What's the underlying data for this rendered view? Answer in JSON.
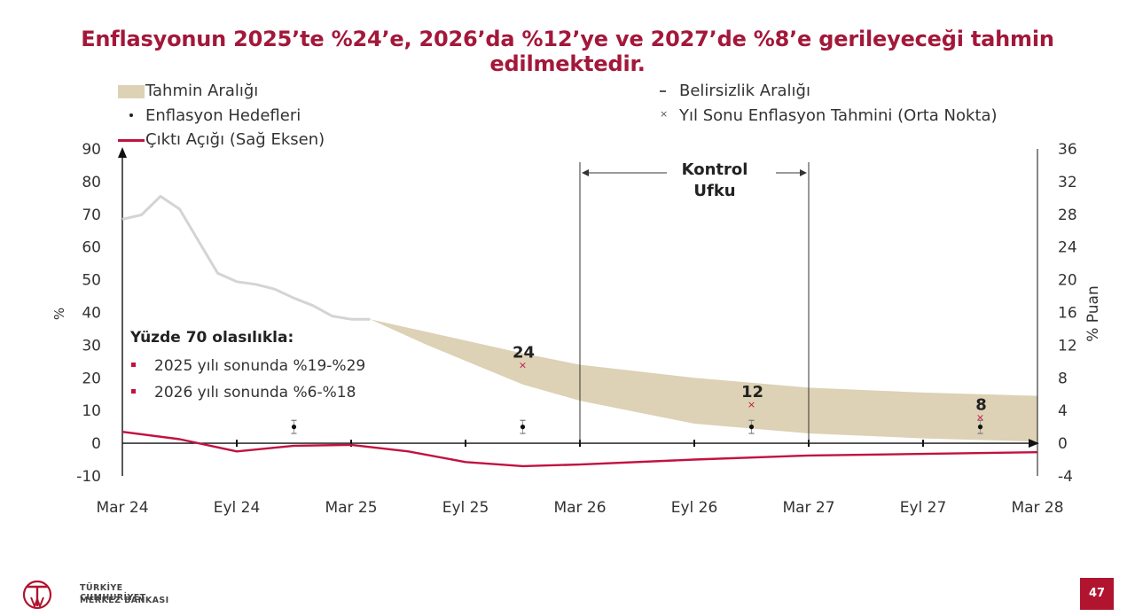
{
  "slide": {
    "title": "Enflasyonun 2025’te %24’e, 2026’da %12’ye ve 2027’de %8’e gerileyeceği tahmin edilmektedir.",
    "page_number": "47",
    "footer_line1": "TÜRKİYE CUMHURİYET",
    "footer_line2": "MERKEZ BANKASI",
    "logo_mark": "TCMB"
  },
  "legend": {
    "band": "Tahmin Aralığı",
    "targets": "Enflasyon Hedefleri",
    "output_gap": "Çıktı Açığı (Sağ Eksen)",
    "uncertainty": "Belirsizlik Aralığı",
    "year_end": "Yıl Sonu Enflasyon Tahmini (Orta Nokta)"
  },
  "colors": {
    "title": "#a3183a",
    "band": "#ddd1b6",
    "inflation_line": "#d4d4d4",
    "output_gap": "#c2123f",
    "year_end_marker": "#c2123f",
    "axis": "#111111",
    "page_badge": "#b0142f"
  },
  "chart_data": {
    "type": "line",
    "x_labels": [
      "Mar 24",
      "Eyl 24",
      "Mar 25",
      "Eyl 25",
      "Mar 26",
      "Eyl 26",
      "Mar 27",
      "Eyl 27",
      "Mar 28"
    ],
    "x_label_months": [
      0,
      6,
      12,
      18,
      24,
      30,
      36,
      42,
      48
    ],
    "x_range": [
      0,
      48
    ],
    "ylabel": "%",
    "y2label": "% Puan",
    "ylim": [
      -10,
      90
    ],
    "yticks": [
      -10,
      0,
      10,
      20,
      30,
      40,
      50,
      60,
      70,
      80,
      90
    ],
    "y2lim": [
      -4,
      36
    ],
    "y2ticks": [
      -4,
      0,
      4,
      8,
      12,
      16,
      20,
      24,
      28,
      32,
      36
    ],
    "inflation": {
      "name": "Enflasyon",
      "months": [
        0,
        1,
        2,
        3,
        4,
        5,
        6,
        7,
        8,
        9,
        10,
        11,
        12,
        13
      ],
      "values": [
        68.5,
        69.8,
        75.5,
        71.6,
        61.8,
        52.0,
        49.4,
        48.6,
        47.1,
        44.4,
        42.1,
        38.9,
        37.9,
        37.9
      ]
    },
    "forecast_band": {
      "name": "Tahmin Aralığı",
      "months": [
        13,
        16,
        21,
        24,
        30,
        36,
        42,
        48
      ],
      "upper": [
        37.9,
        34.0,
        27.5,
        24.0,
        20.0,
        17.0,
        15.5,
        14.5
      ],
      "lower": [
        37.9,
        30.0,
        18.0,
        13.0,
        6.0,
        3.0,
        1.5,
        0.5
      ]
    },
    "year_end_points": [
      {
        "month": 21,
        "value": 24,
        "label": "24"
      },
      {
        "month": 33,
        "value": 12,
        "label": "12"
      },
      {
        "month": 45,
        "value": 8,
        "label": "8"
      }
    ],
    "targets": [
      {
        "month": 9,
        "value": 5,
        "low": 3,
        "high": 7
      },
      {
        "month": 21,
        "value": 5,
        "low": 3,
        "high": 7
      },
      {
        "month": 33,
        "value": 5,
        "low": 3,
        "high": 7
      },
      {
        "month": 45,
        "value": 5,
        "low": 3,
        "high": 7
      }
    ],
    "output_gap": {
      "name": "Çıktı Açığı (Sağ Eksen)",
      "months": [
        0,
        3,
        6,
        9,
        12,
        15,
        18,
        21,
        24,
        30,
        36,
        42,
        48
      ],
      "values": [
        1.4,
        0.5,
        -1.0,
        -0.3,
        -0.2,
        -1.0,
        -2.3,
        -2.8,
        -2.6,
        -2.0,
        -1.5,
        -1.3,
        -1.1
      ]
    },
    "control_horizon": {
      "label_line1": "Kontrol",
      "label_line2": "Ufku",
      "start_month": 24,
      "end_month": 36
    },
    "annotation": {
      "heading": "Yüzde 70 olasılıkla:",
      "items": [
        "2025 yılı sonunda %19-%29",
        "2026 yılı sonunda %6-%18"
      ]
    }
  }
}
